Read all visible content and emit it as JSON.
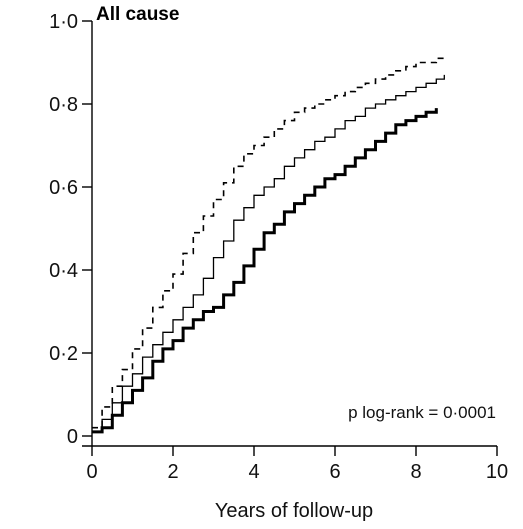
{
  "chart_data": {
    "type": "line",
    "title": "All cause",
    "xlabel": "Years of follow-up",
    "ylabel": "",
    "xlim": [
      0,
      10
    ],
    "ylim": [
      0,
      1.0
    ],
    "x_ticks": [
      "0",
      "2",
      "4",
      "6",
      "8",
      "10"
    ],
    "y_ticks": [
      "0",
      "0·2",
      "0·4",
      "0·6",
      "0·8",
      "1·0"
    ],
    "x_tick_values": [
      0,
      2,
      4,
      6,
      8,
      10
    ],
    "y_tick_values": [
      0,
      0.2,
      0.4,
      0.6,
      0.8,
      1.0
    ],
    "grid": false,
    "legend": "none",
    "annotation": "p log-rank = 0·0001",
    "series": [
      {
        "line_style": "dashed",
        "x": [
          0,
          0.25,
          0.5,
          0.75,
          1.0,
          1.25,
          1.5,
          1.75,
          2.0,
          2.25,
          2.5,
          2.75,
          3.0,
          3.25,
          3.5,
          3.75,
          4.0,
          4.25,
          4.5,
          4.75,
          5.0,
          5.25,
          5.5,
          5.75,
          6.0,
          6.25,
          6.5,
          6.75,
          7.0,
          7.25,
          7.5,
          7.75,
          8.0,
          8.25,
          8.5,
          8.7
        ],
        "y": [
          0.02,
          0.07,
          0.12,
          0.16,
          0.21,
          0.26,
          0.31,
          0.35,
          0.39,
          0.44,
          0.49,
          0.53,
          0.57,
          0.61,
          0.65,
          0.68,
          0.7,
          0.72,
          0.74,
          0.76,
          0.78,
          0.79,
          0.8,
          0.81,
          0.82,
          0.83,
          0.84,
          0.85,
          0.86,
          0.87,
          0.88,
          0.89,
          0.9,
          0.9,
          0.91,
          0.91
        ]
      },
      {
        "line_style": "solid-thin",
        "x": [
          0,
          0.25,
          0.5,
          0.75,
          1.0,
          1.25,
          1.5,
          1.75,
          2.0,
          2.25,
          2.5,
          2.75,
          3.0,
          3.25,
          3.5,
          3.75,
          4.0,
          4.25,
          4.5,
          4.75,
          5.0,
          5.25,
          5.5,
          5.75,
          6.0,
          6.25,
          6.5,
          6.75,
          7.0,
          7.25,
          7.5,
          7.75,
          8.0,
          8.25,
          8.5,
          8.7
        ],
        "y": [
          0.01,
          0.04,
          0.08,
          0.12,
          0.15,
          0.19,
          0.22,
          0.25,
          0.28,
          0.31,
          0.34,
          0.38,
          0.43,
          0.47,
          0.52,
          0.55,
          0.58,
          0.6,
          0.62,
          0.65,
          0.67,
          0.69,
          0.71,
          0.72,
          0.74,
          0.76,
          0.77,
          0.79,
          0.8,
          0.81,
          0.82,
          0.83,
          0.84,
          0.85,
          0.86,
          0.87
        ]
      },
      {
        "line_style": "solid-thick",
        "x": [
          0,
          0.25,
          0.5,
          0.75,
          1.0,
          1.25,
          1.5,
          1.75,
          2.0,
          2.25,
          2.5,
          2.75,
          3.0,
          3.25,
          3.5,
          3.75,
          4.0,
          4.25,
          4.5,
          4.75,
          5.0,
          5.25,
          5.5,
          5.75,
          6.0,
          6.25,
          6.5,
          6.75,
          7.0,
          7.25,
          7.5,
          7.75,
          8.0,
          8.25,
          8.5
        ],
        "y": [
          0.01,
          0.02,
          0.05,
          0.08,
          0.11,
          0.14,
          0.18,
          0.21,
          0.23,
          0.26,
          0.28,
          0.3,
          0.31,
          0.34,
          0.37,
          0.41,
          0.45,
          0.49,
          0.51,
          0.54,
          0.56,
          0.58,
          0.6,
          0.62,
          0.63,
          0.65,
          0.67,
          0.69,
          0.71,
          0.73,
          0.75,
          0.76,
          0.77,
          0.78,
          0.79
        ]
      }
    ]
  }
}
